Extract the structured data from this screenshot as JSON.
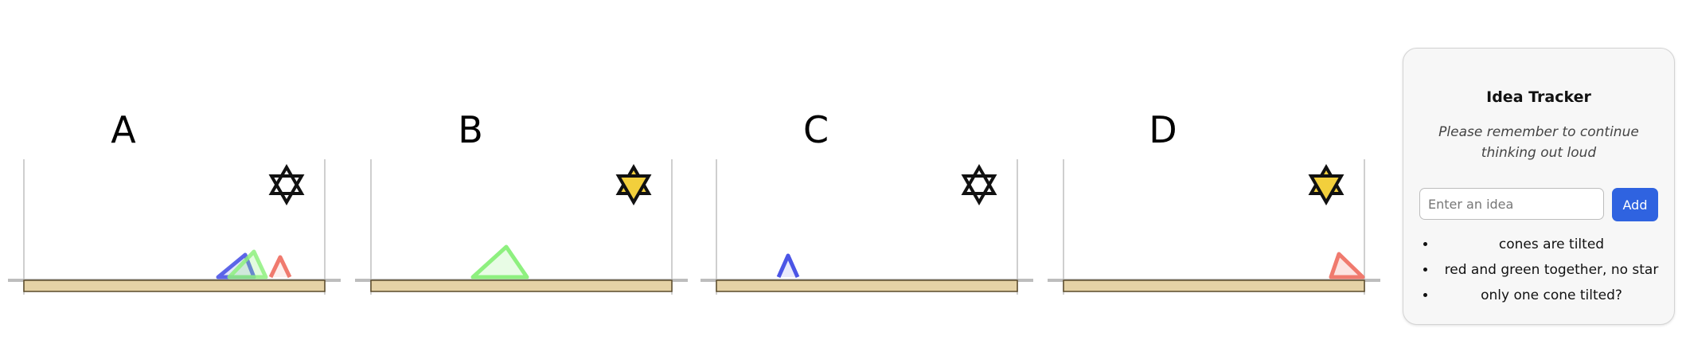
{
  "panels": [
    {
      "label": "A",
      "star_filled": false,
      "star_color": "#f2cf3c",
      "cones": [
        "blue-tilted",
        "green-tilted",
        "red-upright"
      ]
    },
    {
      "label": "B",
      "star_filled": true,
      "star_color": "#f2cf3c",
      "cones": [
        "green-tilted"
      ]
    },
    {
      "label": "C",
      "star_filled": false,
      "star_color": "#f2cf3c",
      "cones": [
        "blue-upright"
      ]
    },
    {
      "label": "D",
      "star_filled": true,
      "star_color": "#f2cf3c",
      "cones": [
        "red-tilted"
      ]
    }
  ],
  "colors": {
    "blue": "#4b55e6",
    "green": "#8ef07f",
    "red": "#f07a6e",
    "platform": "#e5d2a6",
    "accent": "#2f63e0"
  },
  "tracker": {
    "title": "Idea Tracker",
    "subtitle": "Please remember to continue thinking out loud",
    "input_placeholder": "Enter an idea",
    "add_label": "Add",
    "ideas": [
      "cones are tilted",
      "red and green together, no star",
      "only one cone tilted?"
    ]
  }
}
